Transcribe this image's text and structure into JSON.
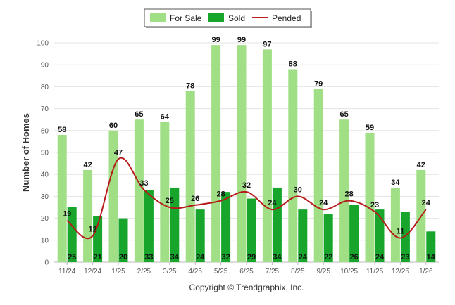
{
  "chart_data": {
    "type": "bar",
    "categories": [
      "11/24",
      "12/24",
      "1/25",
      "2/25",
      "3/25",
      "4/25",
      "5/25",
      "6/25",
      "7/25",
      "8/25",
      "9/25",
      "10/25",
      "11/25",
      "12/25",
      "1/26"
    ],
    "series": [
      {
        "name": "For Sale",
        "kind": "bar",
        "color": "#a0df85",
        "values": [
          58,
          42,
          60,
          65,
          64,
          78,
          99,
          99,
          97,
          88,
          79,
          65,
          59,
          34,
          42
        ]
      },
      {
        "name": "Sold",
        "kind": "bar",
        "color": "#17a52b",
        "values": [
          25,
          21,
          20,
          33,
          34,
          24,
          32,
          29,
          34,
          24,
          22,
          26,
          24,
          23,
          14
        ]
      },
      {
        "name": "Pended",
        "kind": "line",
        "color": "#b71c1c",
        "values": [
          19,
          12,
          47,
          33,
          25,
          26,
          28,
          32,
          24,
          30,
          24,
          28,
          23,
          11,
          24
        ]
      }
    ],
    "ylabel": "Number of Homes",
    "ylim": [
      0,
      100
    ],
    "yticks": [
      0,
      10,
      20,
      30,
      40,
      50,
      60,
      70,
      80,
      90,
      100
    ],
    "grid": true,
    "legend_position": "top-center",
    "credit": "Copyright © Trendgraphix, Inc."
  }
}
